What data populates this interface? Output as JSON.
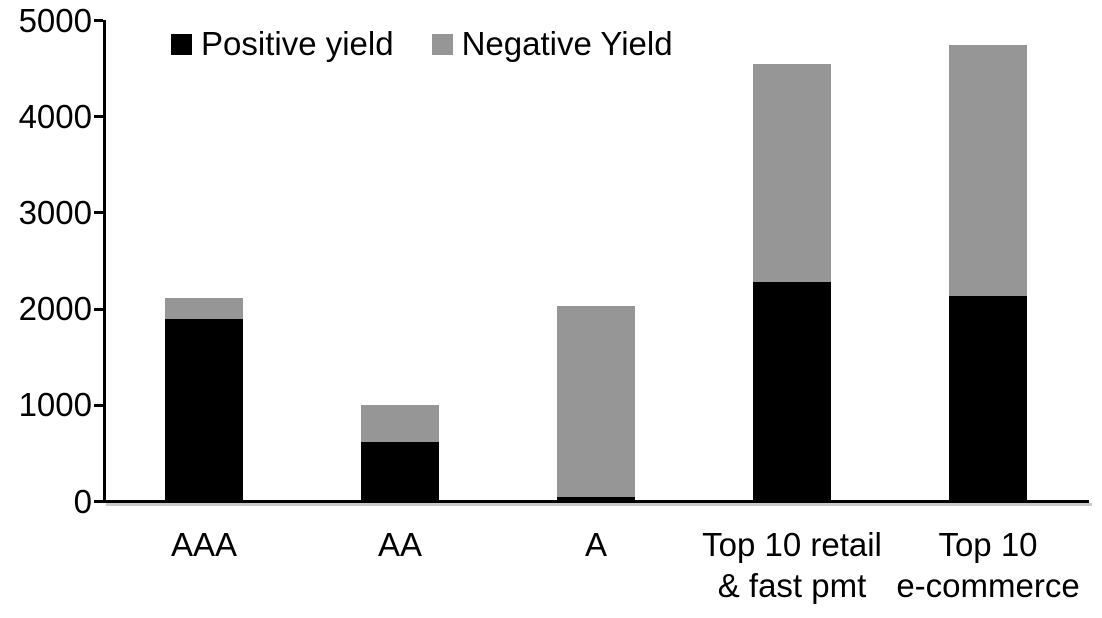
{
  "chart_data": {
    "type": "bar",
    "stacked": true,
    "title": "",
    "xlabel": "",
    "ylabel": "",
    "grid": false,
    "legend_position": "top",
    "ylim": [
      0,
      5000
    ],
    "yticks": [
      0,
      1000,
      2000,
      3000,
      4000,
      5000
    ],
    "categories": [
      "AAA",
      "AA",
      "A",
      "Top 10 retail\n& fast pmt",
      "Top 10\ne-commerce"
    ],
    "series": [
      {
        "name": "Positive yield",
        "color": "#000000",
        "values": [
          1900,
          620,
          50,
          2280,
          2140
        ]
      },
      {
        "name": "Negative Yield",
        "color": "#969696",
        "values": [
          220,
          380,
          1980,
          2270,
          2610
        ]
      }
    ],
    "totals": [
      2120,
      1000,
      2030,
      4550,
      4750
    ]
  }
}
